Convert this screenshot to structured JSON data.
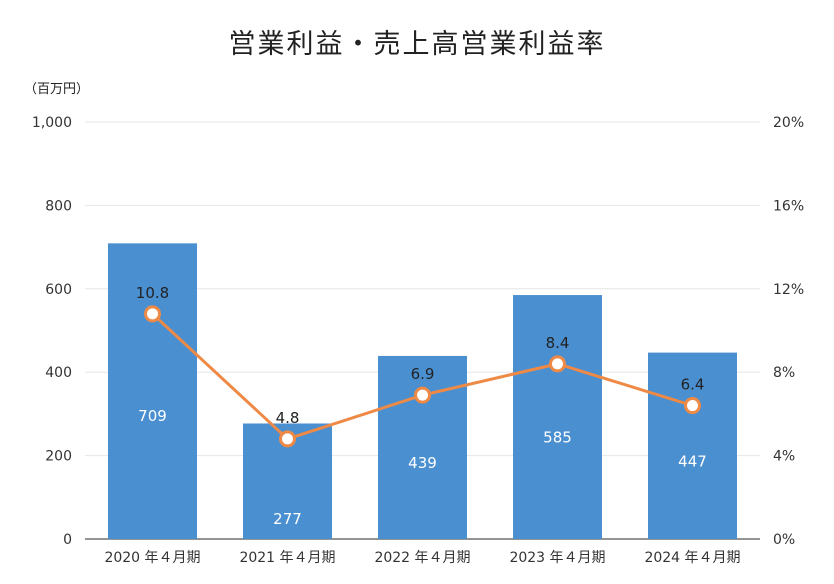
{
  "title": "営業利益・売上高営業利益率",
  "unit_label": "（百万円）",
  "colors": {
    "bar": "#4a8fd0",
    "line": "#ee8a45",
    "grid": "#e6e6e6",
    "axis": "#555555"
  },
  "chart_data": {
    "type": "bar",
    "title": "営業利益・売上高営業利益率",
    "categories": [
      "2020 年４月期",
      "2021 年４月期",
      "2022 年４月期",
      "2023 年４月期",
      "2024 年４月期"
    ],
    "series": [
      {
        "type": "bar",
        "values": [
          709,
          277,
          439,
          585,
          447
        ],
        "axis": "left"
      },
      {
        "type": "line",
        "values": [
          10.8,
          4.8,
          6.9,
          8.4,
          6.4
        ],
        "axis": "right"
      }
    ],
    "left_axis": {
      "ylim": [
        0,
        1000
      ],
      "ticks": [
        "0",
        "200",
        "400",
        "600",
        "800",
        "1,000"
      ]
    },
    "right_axis": {
      "ylim": [
        0,
        20
      ],
      "ticks": [
        "0%",
        "4%",
        "8%",
        "12%",
        "16%",
        "20%"
      ]
    },
    "bar_labels": [
      "709",
      "277",
      "439",
      "585",
      "447"
    ],
    "line_labels": [
      "10.8",
      "4.8",
      "6.9",
      "8.4",
      "6.4"
    ],
    "grid": true
  }
}
